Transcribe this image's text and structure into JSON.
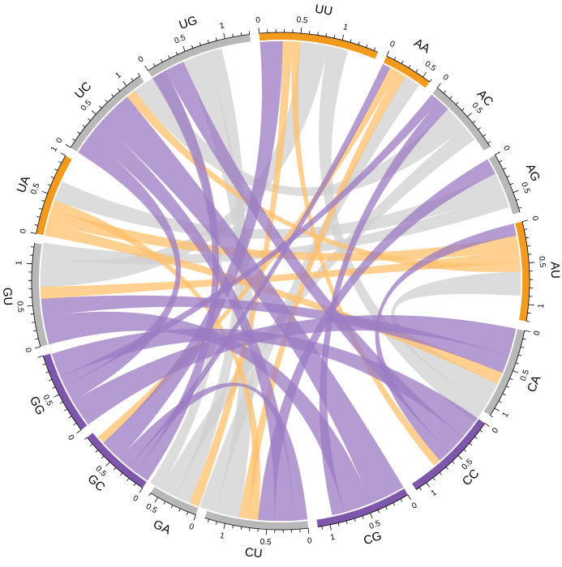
{
  "diagram": {
    "type": "chord",
    "colors": {
      "purple": "#7e57ad",
      "orange": "#f39a1d",
      "gray": "#b8b8b8",
      "ribbon_purple": "#9b7bc3",
      "ribbon_orange": "#ffc06a",
      "ribbon_gray": "#d0d0d0"
    },
    "sectors": [
      {
        "id": "UA",
        "label": "UA",
        "color": "orange",
        "size": 1.0,
        "tick_labels": [
          "0",
          "0.5",
          "1"
        ]
      },
      {
        "id": "UC",
        "label": "UC",
        "color": "gray",
        "size": 1.2,
        "tick_labels": [
          "0",
          "0.5",
          "1"
        ]
      },
      {
        "id": "UG",
        "label": "UG",
        "color": "gray",
        "size": 1.3,
        "tick_labels": [
          "0",
          "0.5",
          "1"
        ]
      },
      {
        "id": "UU",
        "label": "UU",
        "color": "orange",
        "size": 1.45,
        "tick_labels": [
          "0",
          "0.5",
          "1"
        ]
      },
      {
        "id": "AA",
        "label": "AA",
        "color": "orange",
        "size": 0.6,
        "tick_labels": [
          "0",
          "0.5"
        ]
      },
      {
        "id": "AC",
        "label": "AC",
        "color": "gray",
        "size": 0.95,
        "tick_labels": [
          "0",
          "0.5"
        ]
      },
      {
        "id": "AG",
        "label": "AG",
        "color": "gray",
        "size": 0.75,
        "tick_labels": [
          "0",
          "0.5"
        ]
      },
      {
        "id": "AU",
        "label": "AU",
        "color": "orange",
        "size": 1.2,
        "tick_labels": [
          "0",
          "0.5",
          "1"
        ]
      },
      {
        "id": "CA",
        "label": "CA",
        "color": "gray",
        "size": 1.1,
        "tick_labels": [
          "0",
          "0.5",
          "1"
        ]
      },
      {
        "id": "CC",
        "label": "CC",
        "color": "purple",
        "size": 1.15,
        "tick_labels": [
          "0",
          "0.5",
          "1"
        ]
      },
      {
        "id": "CG",
        "label": "CG",
        "color": "purple",
        "size": 1.15,
        "tick_labels": [
          "0",
          "0.5",
          "1"
        ]
      },
      {
        "id": "CU",
        "label": "CU",
        "color": "gray",
        "size": 1.25,
        "tick_labels": [
          "0",
          "0.5",
          "1"
        ]
      },
      {
        "id": "GA",
        "label": "GA",
        "color": "gray",
        "size": 0.6,
        "tick_labels": [
          "0",
          "0.5"
        ]
      },
      {
        "id": "GC",
        "label": "GC",
        "color": "purple",
        "size": 0.9,
        "tick_labels": [
          "0",
          "0.5"
        ]
      },
      {
        "id": "GG",
        "label": "GG",
        "color": "purple",
        "size": 1.0,
        "tick_labels": [
          "0",
          "0.5"
        ]
      },
      {
        "id": "GU",
        "label": "GU",
        "color": "gray",
        "size": 1.25,
        "tick_labels": [
          "0",
          "0.5",
          "1"
        ]
      }
    ],
    "chords": [
      {
        "from": "GG",
        "to": "CA",
        "value": 0.35,
        "color": "purple"
      },
      {
        "from": "GG",
        "to": "UC",
        "value": 0.22,
        "color": "purple"
      },
      {
        "from": "GG",
        "to": "AC",
        "value": 0.12,
        "color": "purple"
      },
      {
        "from": "GC",
        "to": "UG",
        "value": 0.18,
        "color": "purple"
      },
      {
        "from": "GC",
        "to": "AA",
        "value": 0.1,
        "color": "purple"
      },
      {
        "from": "GC",
        "to": "CU",
        "value": 0.16,
        "color": "purple"
      },
      {
        "from": "GC",
        "to": "UU",
        "value": 0.28,
        "color": "purple"
      },
      {
        "from": "CU",
        "to": "UC",
        "value": 0.25,
        "color": "purple"
      },
      {
        "from": "CU",
        "to": "AG",
        "value": 0.2,
        "color": "purple"
      },
      {
        "from": "CG",
        "to": "UC",
        "value": 0.45,
        "color": "purple"
      },
      {
        "from": "CG",
        "to": "GU",
        "value": 0.35,
        "color": "purple"
      },
      {
        "from": "CG",
        "to": "AC",
        "value": 0.15,
        "color": "purple"
      },
      {
        "from": "CC",
        "to": "GG",
        "value": 0.3,
        "color": "purple"
      },
      {
        "from": "CC",
        "to": "UG",
        "value": 0.25,
        "color": "purple"
      },
      {
        "from": "CC",
        "to": "AU",
        "value": 0.15,
        "color": "purple"
      },
      {
        "from": "GU",
        "to": "CA",
        "value": 0.22,
        "color": "purple"
      },
      {
        "from": "UA",
        "to": "CA",
        "value": 0.15,
        "color": "orange"
      },
      {
        "from": "UA",
        "to": "AU",
        "value": 0.18,
        "color": "orange"
      },
      {
        "from": "UA",
        "to": "CU",
        "value": 0.12,
        "color": "orange"
      },
      {
        "from": "UU",
        "to": "GA",
        "value": 0.12,
        "color": "orange"
      },
      {
        "from": "UU",
        "to": "CC",
        "value": 0.1,
        "color": "orange"
      },
      {
        "from": "AA",
        "to": "GC",
        "value": 0.1,
        "color": "orange"
      },
      {
        "from": "AA",
        "to": "CU",
        "value": 0.12,
        "color": "orange"
      },
      {
        "from": "AU",
        "to": "GU",
        "value": 0.15,
        "color": "orange"
      },
      {
        "from": "AU",
        "to": "UC",
        "value": 0.12,
        "color": "orange"
      },
      {
        "from": "UC",
        "to": "AC",
        "value": 0.3,
        "color": "gray"
      },
      {
        "from": "UG",
        "to": "CU",
        "value": 0.3,
        "color": "gray"
      },
      {
        "from": "UG",
        "to": "GA",
        "value": 0.2,
        "color": "gray"
      },
      {
        "from": "UU",
        "to": "GU",
        "value": 0.35,
        "color": "gray"
      },
      {
        "from": "AC",
        "to": "GA",
        "value": 0.2,
        "color": "gray"
      },
      {
        "from": "AG",
        "to": "UA",
        "value": 0.25,
        "color": "gray"
      },
      {
        "from": "AU",
        "to": "CA",
        "value": 0.3,
        "color": "gray"
      },
      {
        "from": "CA",
        "to": "UU",
        "value": 0.25,
        "color": "gray"
      },
      {
        "from": "CU",
        "to": "AA",
        "value": 0.2,
        "color": "gray"
      },
      {
        "from": "GU",
        "to": "AG",
        "value": 0.2,
        "color": "gray"
      },
      {
        "from": "GA",
        "to": "UC",
        "value": 0.15,
        "color": "gray"
      }
    ]
  }
}
